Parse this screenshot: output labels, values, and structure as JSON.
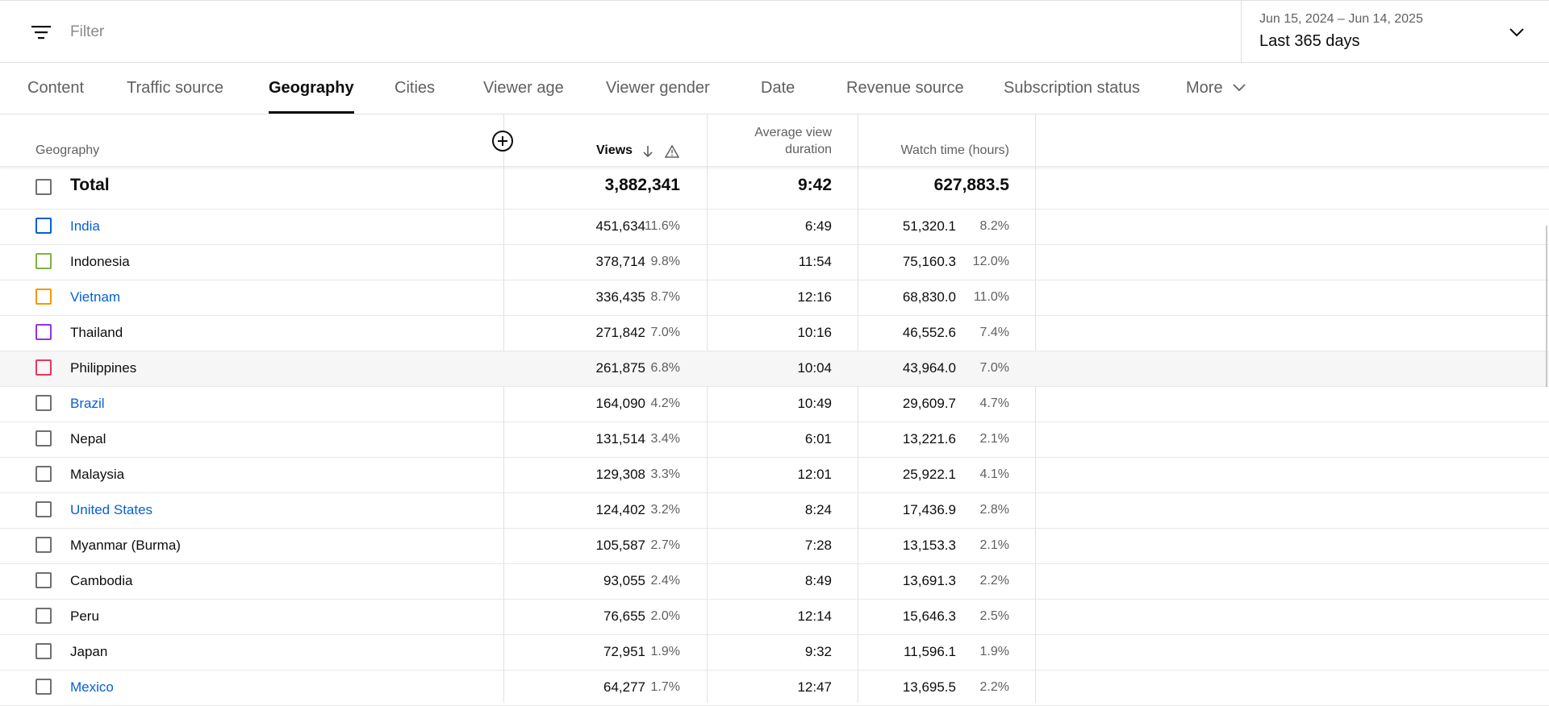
{
  "filter": {
    "placeholder": "Filter",
    "icon": "filter-lines-icon"
  },
  "date": {
    "range": "Jun 15, 2024 – Jun 14, 2025",
    "label": "Last 365 days"
  },
  "tabs": [
    {
      "label": "Content"
    },
    {
      "label": "Traffic source"
    },
    {
      "label": "Geography",
      "active": true
    },
    {
      "label": "Cities"
    },
    {
      "label": "Viewer age"
    },
    {
      "label": "Viewer gender"
    },
    {
      "label": "Date"
    },
    {
      "label": "Revenue source"
    },
    {
      "label": "Subscription status"
    },
    {
      "label": "More"
    }
  ],
  "columns": {
    "geography": "Geography",
    "views": "Views",
    "avg_line1": "Average view",
    "avg_line2": "duration",
    "watch_time": "Watch time (hours)"
  },
  "colors": {
    "link": "#065fd4",
    "active_tab_underline": "#0d0d0d"
  },
  "total": {
    "label": "Total",
    "views": "3,882,341",
    "avg": "9:42",
    "watch": "627,883.5"
  },
  "rows": [
    {
      "name": "India",
      "link": true,
      "color": "#065fd4",
      "views": "451,634",
      "views_pct": "11.6%",
      "avg": "6:49",
      "watch": "51,320.1",
      "watch_pct": "8.2%"
    },
    {
      "name": "Indonesia",
      "link": false,
      "color": "#7cb342",
      "views": "378,714",
      "views_pct": "9.8%",
      "avg": "11:54",
      "watch": "75,160.3",
      "watch_pct": "12.0%"
    },
    {
      "name": "Vietnam",
      "link": true,
      "color": "#f29900",
      "views": "336,435",
      "views_pct": "8.7%",
      "avg": "12:16",
      "watch": "68,830.0",
      "watch_pct": "11.0%"
    },
    {
      "name": "Thailand",
      "link": false,
      "color": "#9334e6",
      "views": "271,842",
      "views_pct": "7.0%",
      "avg": "10:16",
      "watch": "46,552.6",
      "watch_pct": "7.4%"
    },
    {
      "name": "Philippines",
      "link": false,
      "color": "#e8345c",
      "views": "261,875",
      "views_pct": "6.8%",
      "avg": "10:04",
      "watch": "43,964.0",
      "watch_pct": "7.0%",
      "highlighted": true
    },
    {
      "name": "Brazil",
      "link": true,
      "color": "",
      "views": "164,090",
      "views_pct": "4.2%",
      "avg": "10:49",
      "watch": "29,609.7",
      "watch_pct": "4.7%"
    },
    {
      "name": "Nepal",
      "link": false,
      "color": "",
      "views": "131,514",
      "views_pct": "3.4%",
      "avg": "6:01",
      "watch": "13,221.6",
      "watch_pct": "2.1%"
    },
    {
      "name": "Malaysia",
      "link": false,
      "color": "",
      "views": "129,308",
      "views_pct": "3.3%",
      "avg": "12:01",
      "watch": "25,922.1",
      "watch_pct": "4.1%"
    },
    {
      "name": "United States",
      "link": true,
      "color": "",
      "views": "124,402",
      "views_pct": "3.2%",
      "avg": "8:24",
      "watch": "17,436.9",
      "watch_pct": "2.8%"
    },
    {
      "name": "Myanmar (Burma)",
      "link": false,
      "color": "",
      "views": "105,587",
      "views_pct": "2.7%",
      "avg": "7:28",
      "watch": "13,153.3",
      "watch_pct": "2.1%"
    },
    {
      "name": "Cambodia",
      "link": false,
      "color": "",
      "views": "93,055",
      "views_pct": "2.4%",
      "avg": "8:49",
      "watch": "13,691.3",
      "watch_pct": "2.2%"
    },
    {
      "name": "Peru",
      "link": false,
      "color": "",
      "views": "76,655",
      "views_pct": "2.0%",
      "avg": "12:14",
      "watch": "15,646.3",
      "watch_pct": "2.5%"
    },
    {
      "name": "Japan",
      "link": false,
      "color": "",
      "views": "72,951",
      "views_pct": "1.9%",
      "avg": "9:32",
      "watch": "11,596.1",
      "watch_pct": "1.9%"
    },
    {
      "name": "Mexico",
      "link": true,
      "color": "",
      "views": "64,277",
      "views_pct": "1.7%",
      "avg": "12:47",
      "watch": "13,695.5",
      "watch_pct": "2.2%"
    }
  ]
}
